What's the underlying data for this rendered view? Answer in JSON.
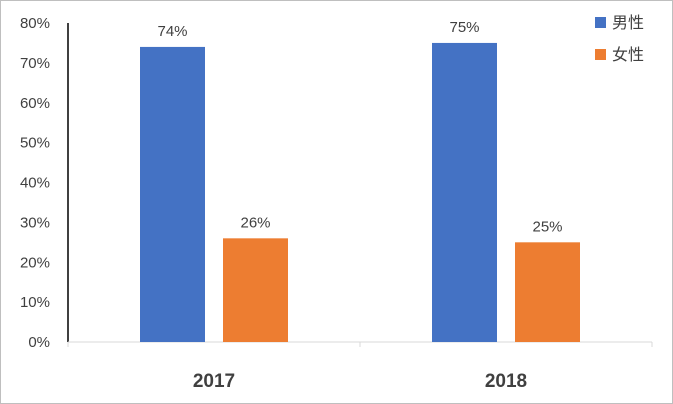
{
  "chart_data": {
    "type": "bar",
    "categories": [
      "2017",
      "2018"
    ],
    "series": [
      {
        "name": "男性",
        "values": [
          74,
          75
        ],
        "labels": [
          "74%",
          "75%"
        ],
        "color": "#4472c4"
      },
      {
        "name": "女性",
        "values": [
          26,
          25
        ],
        "labels": [
          "26%",
          "25%"
        ],
        "color": "#ed7d31"
      }
    ],
    "ylim": [
      0,
      80
    ],
    "yticks": [
      "0%",
      "10%",
      "20%",
      "30%",
      "40%",
      "50%",
      "60%",
      "70%",
      "80%"
    ],
    "grid": false,
    "legend_position": "top-right"
  }
}
